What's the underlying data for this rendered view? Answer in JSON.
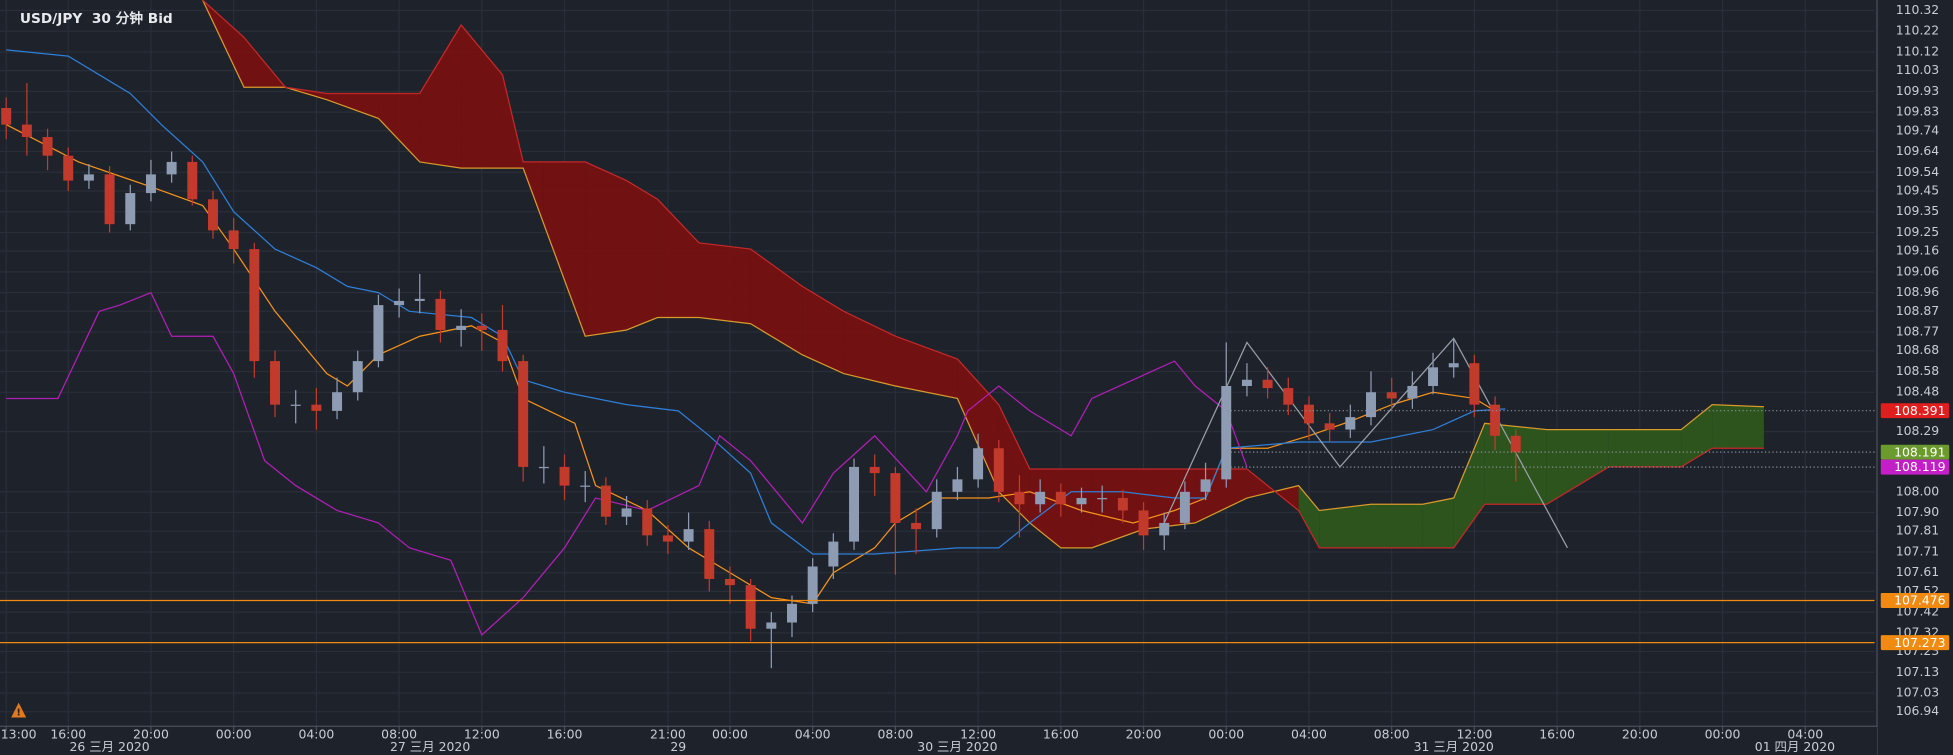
{
  "chart_data": {
    "type": "candlestick",
    "title": "USD/JPY  30 分钟 Bid",
    "xlim": [
      -0.6,
      180.7
    ],
    "ylim": [
      106.87,
      110.37
    ],
    "grid": true,
    "xticks": [
      {
        "value": 0,
        "label": "13:00"
      },
      {
        "value": 6,
        "label": "16:00"
      },
      {
        "value": 14,
        "label": "20:00"
      },
      {
        "value": 22,
        "label": "00:00"
      },
      {
        "value": 30,
        "label": "04:00"
      },
      {
        "value": 38,
        "label": "08:00"
      },
      {
        "value": 46,
        "label": "12:00"
      },
      {
        "value": 54,
        "label": "16:00"
      },
      {
        "value": 64,
        "label": "21:00"
      },
      {
        "value": 70,
        "label": "00:00"
      },
      {
        "value": 78,
        "label": "04:00"
      },
      {
        "value": 86,
        "label": "08:00"
      },
      {
        "value": 94,
        "label": "12:00"
      },
      {
        "value": 102,
        "label": "16:00"
      },
      {
        "value": 110,
        "label": "20:00"
      },
      {
        "value": 118,
        "label": "00:00"
      },
      {
        "value": 126,
        "label": "04:00"
      },
      {
        "value": 134,
        "label": "08:00"
      },
      {
        "value": 142,
        "label": "12:00"
      },
      {
        "value": 150,
        "label": "16:00"
      },
      {
        "value": 158,
        "label": "20:00"
      },
      {
        "value": 166,
        "label": "00:00"
      },
      {
        "value": 174,
        "label": "04:00"
      }
    ],
    "date_ticks": [
      {
        "value": 10,
        "label": "26 三月 2020"
      },
      {
        "value": 41,
        "label": "27 三月 2020"
      },
      {
        "value": 65,
        "label": "29"
      },
      {
        "value": 92,
        "label": "30 三月 2020"
      },
      {
        "value": 140,
        "label": "31 三月 2020"
      },
      {
        "value": 173,
        "label": "01 四月 2020"
      }
    ],
    "yticks": [
      110.32,
      110.22,
      110.12,
      110.03,
      109.93,
      109.83,
      109.74,
      109.64,
      109.54,
      109.45,
      109.35,
      109.25,
      109.16,
      109.06,
      108.96,
      108.87,
      108.77,
      108.68,
      108.58,
      108.48,
      108.29,
      {
        "value": 108,
        "label": "108.00"
      },
      {
        "value": 107.9,
        "label": "107.90"
      },
      107.81,
      107.71,
      107.61,
      107.52,
      107.42,
      107.32,
      107.23,
      107.13,
      107.03,
      106.94
    ],
    "candles": {
      "up_color": "#8d9bb3",
      "down_color": "#c23a2b",
      "x": [
        0,
        2,
        4,
        6,
        8,
        10,
        12,
        14,
        16,
        18,
        20,
        22,
        24,
        26,
        28,
        30,
        32,
        34,
        36,
        38,
        40,
        42,
        44,
        46,
        48,
        50,
        52,
        54,
        56,
        58,
        60,
        62,
        64,
        66,
        68,
        70,
        72,
        74,
        76,
        78,
        80,
        82,
        84,
        86,
        88,
        90,
        92,
        94,
        96,
        98,
        100,
        102,
        104,
        106,
        108,
        110,
        112,
        114,
        116,
        118,
        120,
        122,
        124,
        126,
        128,
        130,
        132,
        134,
        136,
        138,
        140,
        142,
        144,
        146
      ],
      "open": [
        109.85,
        109.77,
        109.71,
        109.62,
        109.5,
        109.53,
        109.29,
        109.44,
        109.53,
        109.59,
        109.41,
        109.26,
        109.17,
        108.63,
        108.42,
        108.42,
        108.39,
        108.48,
        108.63,
        108.9,
        108.92,
        108.93,
        108.78,
        108.8,
        108.78,
        108.63,
        108.12,
        108.12,
        108.03,
        108.03,
        107.88,
        107.92,
        107.79,
        107.76,
        107.82,
        107.58,
        107.55,
        107.34,
        107.37,
        107.46,
        107.64,
        107.76,
        108.12,
        108.09,
        107.85,
        107.82,
        108,
        108.06,
        108.21,
        108,
        107.94,
        108,
        107.94,
        107.97,
        107.97,
        107.91,
        107.79,
        107.85,
        108,
        108.06,
        108.51,
        108.54,
        108.5,
        108.42,
        108.33,
        108.3,
        108.36,
        108.48,
        108.45,
        108.51,
        108.6,
        108.62,
        108.42,
        108.27
      ],
      "high": [
        109.9,
        109.97,
        109.75,
        109.66,
        109.58,
        109.57,
        109.48,
        109.6,
        109.64,
        109.62,
        109.45,
        109.32,
        109.2,
        108.68,
        108.49,
        108.5,
        108.55,
        108.68,
        108.95,
        108.98,
        109.05,
        108.97,
        108.88,
        108.86,
        108.9,
        108.66,
        108.22,
        108.18,
        108.1,
        108.07,
        107.98,
        107.96,
        107.84,
        107.9,
        107.86,
        107.64,
        107.58,
        107.42,
        107.5,
        107.68,
        107.8,
        108.16,
        108.18,
        108.12,
        107.92,
        108.06,
        108.12,
        108.28,
        108.25,
        108.08,
        108.06,
        108.04,
        108.02,
        108.03,
        108.01,
        107.95,
        107.9,
        108.05,
        108.14,
        108.72,
        108.62,
        108.6,
        108.55,
        108.46,
        108.38,
        108.42,
        108.58,
        108.55,
        108.58,
        108.67,
        108.74,
        108.66,
        108.46,
        108.3
      ],
      "low": [
        109.7,
        109.62,
        109.55,
        109.45,
        109.46,
        109.25,
        109.26,
        109.4,
        109.49,
        109.38,
        109.22,
        109.1,
        108.55,
        108.36,
        108.33,
        108.3,
        108.35,
        108.44,
        108.6,
        108.84,
        108.86,
        108.72,
        108.7,
        108.68,
        108.58,
        108.05,
        108.04,
        107.96,
        107.95,
        107.84,
        107.84,
        107.74,
        107.7,
        107.72,
        107.52,
        107.46,
        107.28,
        107.15,
        107.3,
        107.42,
        107.58,
        107.72,
        107.98,
        107.6,
        107.7,
        107.78,
        107.96,
        108.02,
        107.95,
        107.78,
        107.9,
        107.88,
        107.9,
        107.9,
        107.85,
        107.72,
        107.72,
        107.82,
        107.96,
        108.02,
        108.46,
        108.45,
        108.37,
        108.25,
        108.24,
        108.26,
        108.32,
        108.4,
        108.4,
        108.47,
        108.55,
        108.36,
        108.2,
        108.05
      ],
      "close": [
        109.77,
        109.71,
        109.62,
        109.5,
        109.53,
        109.29,
        109.44,
        109.53,
        109.59,
        109.41,
        109.26,
        109.17,
        108.63,
        108.42,
        108.42,
        108.39,
        108.48,
        108.63,
        108.9,
        108.92,
        108.93,
        108.78,
        108.8,
        108.78,
        108.63,
        108.12,
        108.12,
        108.03,
        108.03,
        107.88,
        107.92,
        107.79,
        107.76,
        107.82,
        107.58,
        107.55,
        107.34,
        107.37,
        107.46,
        107.64,
        107.76,
        108.12,
        108.09,
        107.85,
        107.82,
        108,
        108.06,
        108.21,
        108,
        107.94,
        108,
        107.94,
        107.97,
        107.97,
        107.91,
        107.79,
        107.85,
        108,
        108.06,
        108.51,
        108.54,
        108.5,
        108.42,
        108.33,
        108.3,
        108.36,
        108.48,
        108.45,
        108.51,
        108.6,
        108.62,
        108.42,
        108.27,
        108.19
      ]
    },
    "cloud": {
      "bull_color": "#2f5a1c",
      "bear_color": "#7a1010",
      "span_a_color": "#d79a2b",
      "span_b_color": "#c62828",
      "x": [
        19,
        23,
        27,
        31,
        36,
        40,
        44,
        48,
        50,
        52,
        56,
        60,
        63,
        67,
        72,
        77,
        81,
        86,
        92,
        96,
        99,
        102,
        105,
        110,
        115,
        120,
        125,
        127,
        132,
        137,
        140,
        143,
        149,
        155,
        162,
        165,
        170
      ],
      "span_a": [
        110.37,
        109.95,
        109.95,
        109.89,
        109.8,
        109.59,
        109.56,
        109.56,
        109.56,
        109.29,
        108.75,
        108.78,
        108.84,
        108.84,
        108.81,
        108.66,
        108.57,
        108.51,
        108.45,
        108,
        107.85,
        107.73,
        107.73,
        107.82,
        107.85,
        107.97,
        108.03,
        107.91,
        107.94,
        107.94,
        107.97,
        108.33,
        108.3,
        108.3,
        108.3,
        108.42,
        108.41
      ],
      "span_b": [
        110.37,
        110.19,
        109.95,
        109.92,
        109.92,
        109.92,
        110.25,
        110.01,
        109.59,
        109.59,
        109.59,
        109.5,
        109.41,
        109.2,
        109.17,
        108.99,
        108.87,
        108.75,
        108.64,
        108.42,
        108.11,
        108.11,
        108.11,
        108.11,
        108.11,
        108.11,
        107.91,
        107.73,
        107.73,
        107.73,
        107.73,
        107.94,
        107.94,
        108.12,
        108.12,
        108.21,
        108.21
      ]
    },
    "series": [
      {
        "color": "#f7931a",
        "x": [
          0,
          7,
          14,
          19,
          22,
          26,
          31,
          33,
          36,
          40,
          45,
          48,
          50,
          55,
          57,
          62,
          66,
          69,
          74,
          78,
          80,
          84,
          86,
          90,
          95,
          99,
          104,
          109,
          113,
          116,
          118,
          122,
          126,
          130,
          134,
          138,
          142,
          144
        ],
        "values": [
          109.77,
          109.59,
          109.47,
          109.38,
          109.17,
          108.87,
          108.57,
          108.51,
          108.66,
          108.75,
          108.8,
          108.72,
          108.45,
          108.33,
          108.03,
          107.91,
          107.73,
          107.64,
          107.49,
          107.46,
          107.61,
          107.73,
          107.85,
          107.97,
          107.97,
          108,
          107.91,
          107.85,
          107.91,
          107.97,
          108.21,
          108.21,
          108.27,
          108.34,
          108.42,
          108.48,
          108.45,
          108.39
        ]
      },
      {
        "color": "#2f7fd8",
        "x": [
          0,
          6,
          12,
          15,
          19,
          22,
          26,
          30,
          33,
          36,
          39,
          45,
          48,
          50,
          54,
          60,
          65,
          68,
          72,
          74,
          78,
          84,
          92,
          96,
          99,
          103,
          108,
          113,
          116,
          118,
          125,
          132,
          138,
          142,
          145
        ],
        "values": [
          110.13,
          110.1,
          109.92,
          109.77,
          109.59,
          109.35,
          109.17,
          109.08,
          108.99,
          108.96,
          108.87,
          108.84,
          108.75,
          108.54,
          108.48,
          108.42,
          108.39,
          108.27,
          108.09,
          107.85,
          107.7,
          107.7,
          107.73,
          107.73,
          107.85,
          108,
          108,
          107.97,
          107.97,
          108.21,
          108.24,
          108.24,
          108.3,
          108.39,
          108.4
        ]
      },
      {
        "color": "#b21fb8",
        "x": [
          0,
          5,
          9,
          11,
          14,
          16,
          20,
          22,
          25,
          28,
          32,
          36,
          39,
          43,
          46,
          50,
          54,
          57,
          62,
          67,
          69,
          72,
          77,
          80,
          84,
          89,
          92,
          93,
          96,
          99,
          103,
          105,
          109,
          113,
          115,
          118,
          120
        ],
        "values": [
          108.45,
          108.45,
          108.87,
          108.9,
          108.96,
          108.75,
          108.75,
          108.57,
          108.15,
          108.03,
          107.91,
          107.85,
          107.73,
          107.67,
          107.31,
          107.49,
          107.73,
          107.97,
          107.91,
          108.03,
          108.27,
          108.15,
          107.85,
          108.09,
          108.27,
          108,
          108.27,
          108.39,
          108.51,
          108.39,
          108.27,
          108.45,
          108.54,
          108.63,
          108.51,
          108.39,
          108.12
        ]
      },
      {
        "color": "#9aa0a8",
        "x": [
          112,
          120,
          129,
          140,
          151
        ],
        "values": [
          107.85,
          108.72,
          108.12,
          108.74,
          107.73
        ]
      }
    ],
    "levels": [
      {
        "value": 108.391,
        "color": "#e01e1e",
        "line": "dotted"
      },
      {
        "value": 108.191,
        "color": "#6b9a2e",
        "line": "dotted"
      },
      {
        "value": 108.119,
        "color": "#c21fc6",
        "line": "dotted"
      },
      {
        "value": 107.476,
        "color": "#f08a10",
        "line": "solid"
      },
      {
        "value": 107.273,
        "color": "#f08a10",
        "line": "solid"
      }
    ]
  }
}
